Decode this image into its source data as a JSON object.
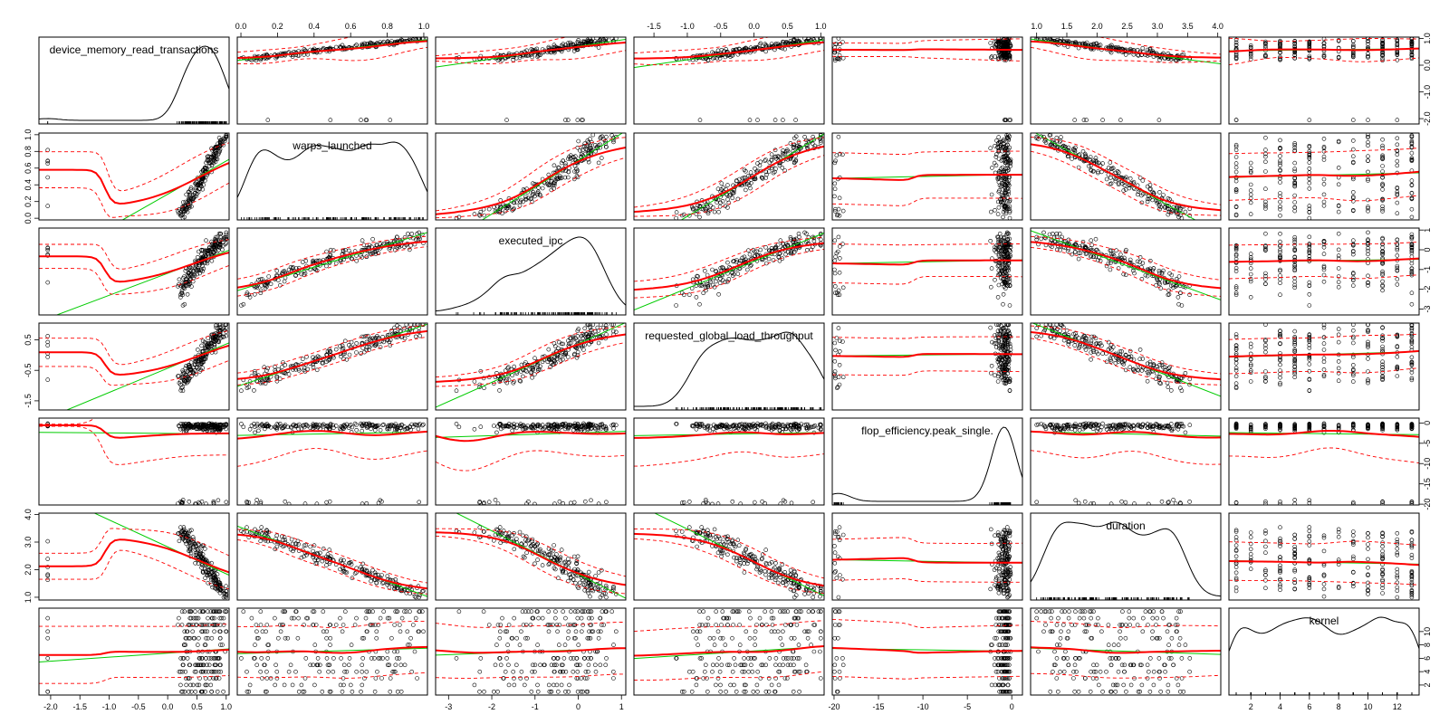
{
  "chart_data": {
    "type": "scatter",
    "subtype": "scatterplot-matrix",
    "title": "",
    "variables": [
      {
        "name": "device_memory_read_transactions",
        "range": [
          -2.2,
          1.05
        ]
      },
      {
        "name": "warps_launched",
        "range": [
          -0.02,
          1.02
        ]
      },
      {
        "name": "executed_ipc",
        "range": [
          -3.3,
          1.1
        ]
      },
      {
        "name": "requested_global_load_throughput",
        "range": [
          -1.8,
          1.05
        ]
      },
      {
        "name": "flop_efficiency.peak_single.",
        "range": [
          -20.2,
          1.2
        ]
      },
      {
        "name": "duration",
        "range": [
          0.9,
          4.05
        ]
      },
      {
        "name": "kernel",
        "range": [
          0.5,
          13.5
        ]
      }
    ],
    "diagonal": "density",
    "lower_and_upper": "scatter with linear fit (green), smooth fit (red) and confidence band (red dashed)",
    "axes": {
      "top": [
        {
          "column": 1,
          "ticks": [
            "0.0",
            "0.2",
            "0.4",
            "0.6",
            "0.8",
            "1.0"
          ],
          "values": [
            0,
            0.2,
            0.4,
            0.6,
            0.8,
            1.0
          ]
        },
        {
          "column": 3,
          "ticks": [
            "-1.5",
            "-1.0",
            "-0.5",
            "0.0",
            "0.5",
            "1.0"
          ],
          "values": [
            -1.5,
            -1.0,
            -0.5,
            0,
            0.5,
            1.0
          ]
        },
        {
          "column": 5,
          "ticks": [
            "1.0",
            "1.5",
            "2.0",
            "2.5",
            "3.0",
            "3.5",
            "4.0"
          ],
          "values": [
            1.0,
            1.5,
            2.0,
            2.5,
            3.0,
            3.5,
            4.0
          ]
        }
      ],
      "bottom": [
        {
          "column": 0,
          "ticks": [
            "-2.0",
            "-1.5",
            "-1.0",
            "-0.5",
            "0.0",
            "0.5",
            "1.0"
          ],
          "values": [
            -2.0,
            -1.5,
            -1.0,
            -0.5,
            0,
            0.5,
            1.0
          ]
        },
        {
          "column": 2,
          "ticks": [
            "-3",
            "-2",
            "-1",
            "0",
            "1"
          ],
          "values": [
            -3,
            -2,
            -1,
            0,
            1
          ]
        },
        {
          "column": 4,
          "ticks": [
            "-20",
            "-15",
            "-10",
            "-5",
            "0"
          ],
          "values": [
            -20,
            -15,
            -10,
            -5,
            0
          ]
        },
        {
          "column": 6,
          "ticks": [
            "2",
            "4",
            "6",
            "8",
            "10",
            "12"
          ],
          "values": [
            2,
            4,
            6,
            8,
            10,
            12
          ]
        }
      ],
      "left": [
        {
          "row": 1,
          "ticks": [
            "0.0",
            "0.2",
            "0.4",
            "0.6",
            "0.8",
            "1.0"
          ],
          "values": [
            0,
            0.2,
            0.4,
            0.6,
            0.8,
            1.0
          ]
        },
        {
          "row": 3,
          "ticks": [
            "-1.5",
            "-0.5",
            "0.5"
          ],
          "values": [
            -1.5,
            -0.5,
            0.5
          ]
        },
        {
          "row": 5,
          "ticks": [
            "1.0",
            "2.0",
            "3.0",
            "4.0"
          ],
          "values": [
            1.0,
            2.0,
            3.0,
            4.0
          ]
        }
      ],
      "right": [
        {
          "row": 0,
          "ticks": [
            "-2.0",
            "-1.0",
            "0.0",
            "1.0"
          ],
          "values": [
            -2.0,
            -1.0,
            0,
            1.0
          ]
        },
        {
          "row": 2,
          "ticks": [
            "-3",
            "-2",
            "-1",
            "0",
            "1"
          ],
          "values": [
            -3,
            -2,
            -1,
            0,
            1
          ]
        },
        {
          "row": 4,
          "ticks": [
            "-20",
            "-15",
            "-10",
            "-5",
            "0"
          ],
          "values": [
            -20,
            -15,
            -10,
            -5,
            0
          ]
        },
        {
          "row": 6,
          "ticks": [
            "2",
            "4",
            "6",
            "8",
            "10"
          ],
          "values": [
            2,
            4,
            6,
            8,
            10
          ]
        }
      ]
    },
    "colors": {
      "points": "#000000",
      "linear_fit": "#00cc00",
      "smooth_fit": "#ff0000",
      "band": "#ff0000",
      "density": "#000000"
    }
  }
}
